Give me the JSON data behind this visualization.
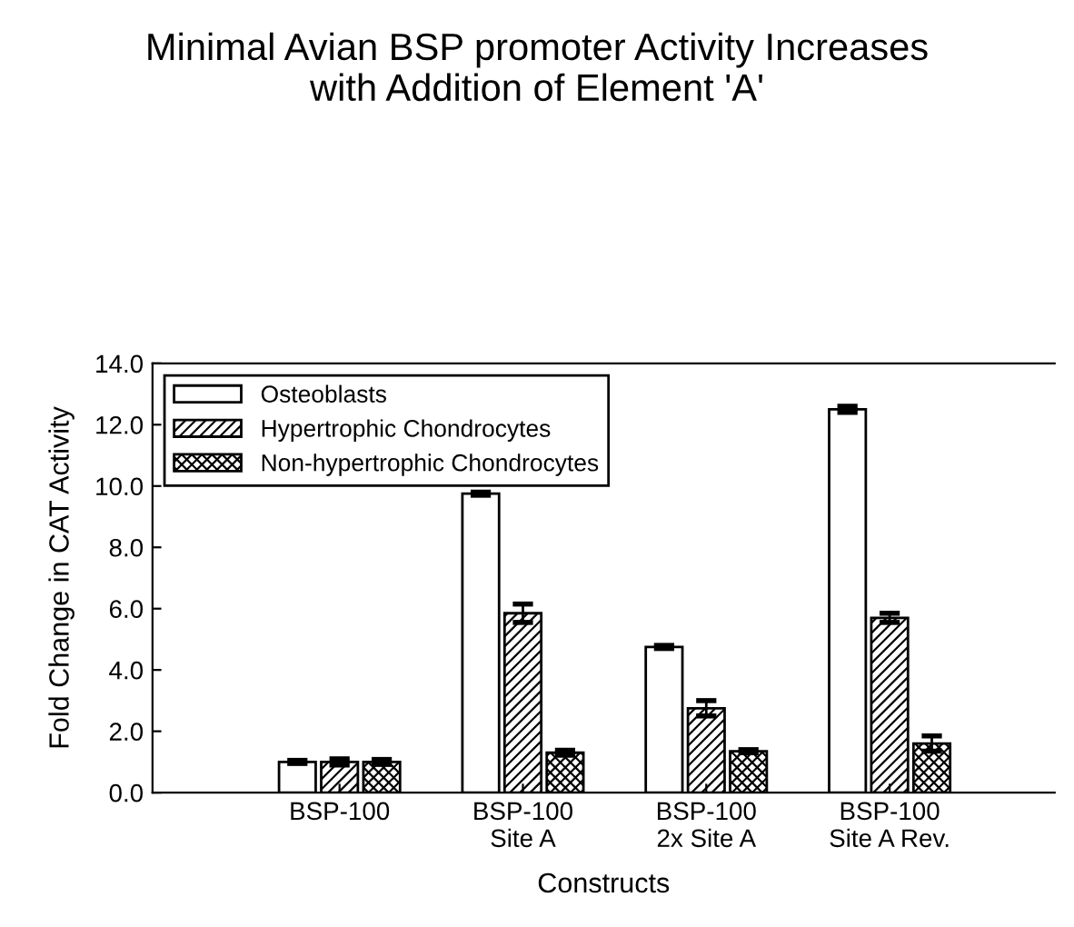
{
  "chart_data": {
    "type": "bar",
    "title": "Minimal Avian BSP promoter Activity Increases\nwith Addition of Element 'A'",
    "xlabel": "Constructs",
    "ylabel": "Fold Change in CAT Activity",
    "categories": [
      "BSP-100",
      "BSP-100\nSite A",
      "BSP-100\n2x Site A",
      "BSP-100\nSite A Rev."
    ],
    "series": [
      {
        "name": "Osteoblasts",
        "color": "#ffffff",
        "values": [
          1.0,
          9.75,
          4.75,
          12.5
        ],
        "errors": [
          0.05,
          0.05,
          0.05,
          0.1
        ]
      },
      {
        "name": "Hypertrophic Chondrocytes",
        "color": "#000000",
        "values": [
          1.0,
          5.85,
          2.75,
          5.7
        ],
        "errors": [
          0.1,
          0.3,
          0.25,
          0.15
        ]
      },
      {
        "name": "Non-hypertrophic Chondrocytes",
        "color": "#000000",
        "values": [
          1.0,
          1.3,
          1.35,
          1.6
        ],
        "errors": [
          0.08,
          0.08,
          0.05,
          0.25
        ]
      }
    ],
    "ylim": [
      0,
      14
    ],
    "yticks": [
      {
        "value": 0,
        "label": "0.0"
      },
      {
        "value": 2,
        "label": "2.0"
      },
      {
        "value": 4,
        "label": "4.0"
      },
      {
        "value": 6,
        "label": "6.0"
      },
      {
        "value": 8,
        "label": "8.0"
      },
      {
        "value": 10,
        "label": "10.0"
      },
      {
        "value": 12,
        "label": "12.0"
      },
      {
        "value": 14,
        "label": "14.0"
      }
    ],
    "legend": "top left",
    "grid": false
  }
}
